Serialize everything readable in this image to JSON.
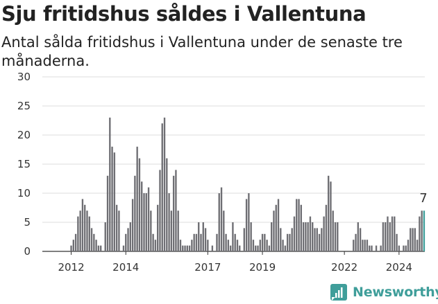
{
  "header": {
    "title": "Sju fritidshus såldes i Vallentuna",
    "subtitle": "Antal sålda fritidshus i Vallentuna under de senaste tre månaderna."
  },
  "brand": {
    "name": "Newsworthy",
    "color": "#3f9e9a"
  },
  "chart_data": {
    "type": "bar",
    "title": "",
    "xlabel": "",
    "ylabel": "",
    "ylim": [
      0,
      30
    ],
    "yticks": [
      0,
      5,
      10,
      15,
      20,
      25,
      30
    ],
    "grid": true,
    "legend": "none",
    "x_start": "2012-01",
    "interval": "month",
    "xtick_labels": [
      {
        "label": "2012",
        "month_index": 12
      },
      {
        "label": "2014",
        "month_index": 36
      },
      {
        "label": "2017",
        "month_index": 72
      },
      {
        "label": "2019",
        "month_index": 96
      },
      {
        "label": "2022",
        "month_index": 132
      },
      {
        "label": "2024",
        "month_index": 156
      }
    ],
    "bar_color": "#6e6e73",
    "highlight_color": "#3f9e9a",
    "highlight_index": 167,
    "annotation": {
      "text": "7",
      "index": 167
    },
    "values": [
      0,
      0,
      0,
      0,
      0,
      0,
      0,
      0,
      0,
      0,
      0,
      0,
      1,
      2,
      3,
      6,
      7,
      9,
      8,
      7,
      6,
      4,
      3,
      2,
      1,
      1,
      0,
      5,
      13,
      23,
      18,
      17,
      8,
      7,
      0,
      1,
      3,
      4,
      5,
      9,
      13,
      18,
      16,
      12,
      10,
      10,
      11,
      7,
      3,
      2,
      8,
      14,
      22,
      23,
      16,
      10,
      7,
      13,
      14,
      7,
      2,
      1,
      1,
      1,
      1,
      2,
      3,
      3,
      5,
      3,
      5,
      4,
      2,
      0,
      1,
      0,
      3,
      10,
      11,
      7,
      3,
      2,
      1,
      5,
      3,
      2,
      1,
      0,
      4,
      9,
      10,
      5,
      2,
      1,
      1,
      2,
      3,
      3,
      2,
      1,
      5,
      7,
      8,
      9,
      4,
      2,
      1,
      3,
      3,
      4,
      6,
      9,
      9,
      8,
      5,
      5,
      5,
      6,
      5,
      4,
      4,
      3,
      4,
      6,
      8,
      13,
      12,
      7,
      5,
      5,
      0,
      0,
      0,
      0,
      0,
      0,
      2,
      3,
      5,
      4,
      2,
      2,
      2,
      1,
      1,
      0,
      1,
      0,
      1,
      5,
      5,
      6,
      5,
      6,
      6,
      3,
      1,
      0,
      1,
      1,
      2,
      4,
      4,
      4,
      2,
      6,
      7,
      7
    ]
  }
}
